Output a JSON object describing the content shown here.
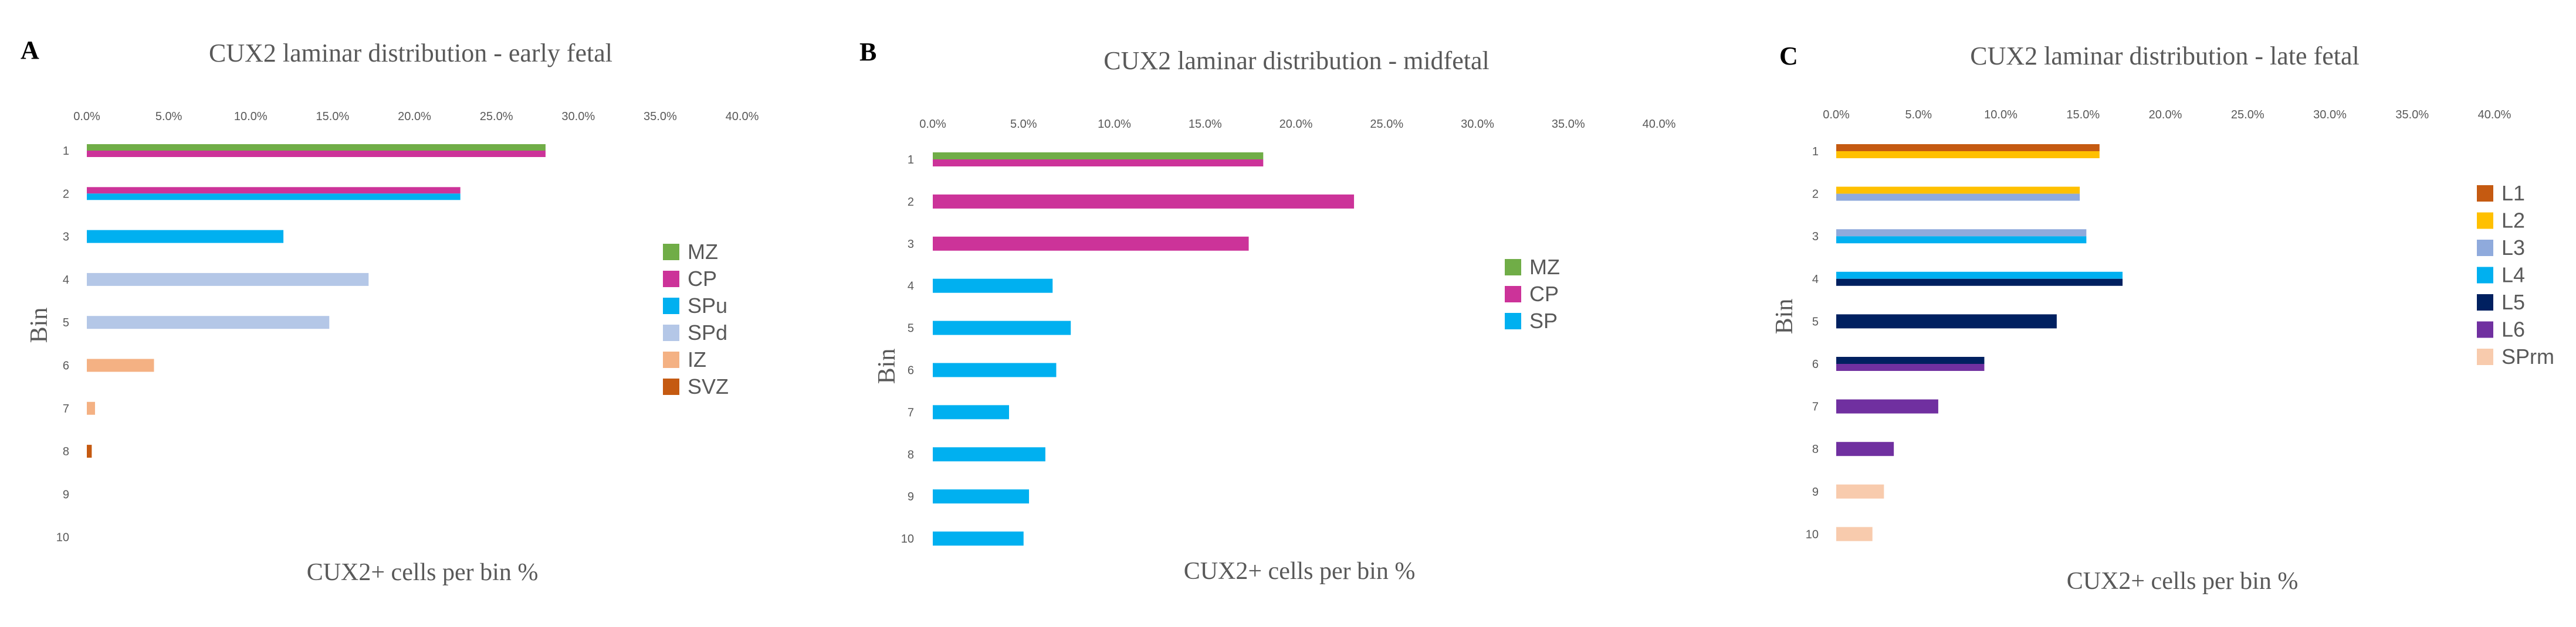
{
  "chart_data": [
    {
      "panel": "A",
      "type": "bar",
      "orientation": "horizontal",
      "title": "CUX2 laminar distribution - early fetal",
      "xlabel": "CUX2+ cells per bin %",
      "ylabel": "Bin",
      "xlim": [
        0,
        0.4
      ],
      "xticks": [
        "0.0%",
        "5.0%",
        "10.0%",
        "15.0%",
        "20.0%",
        "25.0%",
        "30.0%",
        "35.0%",
        "40.0%"
      ],
      "categories": [
        "1",
        "2",
        "3",
        "4",
        "5",
        "6",
        "7",
        "8",
        "9",
        "10"
      ],
      "series": [
        {
          "name": "MZ",
          "color": "#70AD47",
          "values": [
            0.28,
            0,
            0,
            0,
            0,
            0,
            0,
            0,
            0,
            0
          ]
        },
        {
          "name": "CP",
          "color": "#CC3399",
          "values": [
            0.28,
            0.228,
            0,
            0,
            0,
            0,
            0,
            0,
            0,
            0
          ]
        },
        {
          "name": "SPu",
          "color": "#00B0F0",
          "values": [
            0,
            0.228,
            0.12,
            0,
            0,
            0,
            0,
            0,
            0,
            0
          ]
        },
        {
          "name": "SPd",
          "color": "#B4C7E7",
          "values": [
            0,
            0,
            0,
            0.172,
            0.148,
            0,
            0,
            0,
            0,
            0
          ]
        },
        {
          "name": "IZ",
          "color": "#F4B183",
          "values": [
            0,
            0,
            0,
            0,
            0,
            0.041,
            0.005,
            0,
            0,
            0
          ]
        },
        {
          "name": "SVZ",
          "color": "#C55A11",
          "values": [
            0,
            0,
            0,
            0,
            0,
            0,
            0,
            0.003,
            0,
            0
          ]
        }
      ]
    },
    {
      "panel": "B",
      "type": "bar",
      "orientation": "horizontal",
      "title": "CUX2 laminar distribution - midfetal",
      "xlabel": "CUX2+ cells per bin %",
      "ylabel": "Bin",
      "xlim": [
        0,
        0.4
      ],
      "xticks": [
        "0.0%",
        "5.0%",
        "10.0%",
        "15.0%",
        "20.0%",
        "25.0%",
        "30.0%",
        "35.0%",
        "40.0%"
      ],
      "categories": [
        "1",
        "2",
        "3",
        "4",
        "5",
        "6",
        "7",
        "8",
        "9",
        "10"
      ],
      "series": [
        {
          "name": "MZ",
          "color": "#70AD47",
          "values": [
            0.182,
            0,
            0,
            0,
            0,
            0,
            0,
            0,
            0,
            0
          ]
        },
        {
          "name": "CP",
          "color": "#CC3399",
          "values": [
            0.182,
            0.232,
            0.174,
            0,
            0,
            0,
            0,
            0,
            0,
            0
          ]
        },
        {
          "name": "SP",
          "color": "#00B0F0",
          "values": [
            0,
            0,
            0,
            0.066,
            0.076,
            0.068,
            0.042,
            0.062,
            0.053,
            0.05
          ]
        }
      ]
    },
    {
      "panel": "C",
      "type": "bar",
      "orientation": "horizontal",
      "title": "CUX2 laminar distribution - late fetal",
      "xlabel": "CUX2+ cells per bin %",
      "ylabel": "Bin",
      "xlim": [
        0,
        0.4
      ],
      "xticks": [
        "0.0%",
        "5.0%",
        "10.0%",
        "15.0%",
        "20.0%",
        "25.0%",
        "30.0%",
        "35.0%",
        "40.0%"
      ],
      "categories": [
        "1",
        "2",
        "3",
        "4",
        "5",
        "6",
        "7",
        "8",
        "9",
        "10"
      ],
      "series": [
        {
          "name": "L1",
          "color": "#C55A11",
          "values": [
            0.16,
            0,
            0,
            0,
            0,
            0,
            0,
            0,
            0,
            0
          ]
        },
        {
          "name": "L2",
          "color": "#FFC000",
          "values": [
            0.16,
            0.148,
            0,
            0,
            0,
            0,
            0,
            0,
            0,
            0
          ]
        },
        {
          "name": "L3",
          "color": "#8FAADC",
          "values": [
            0,
            0.148,
            0.152,
            0,
            0,
            0,
            0,
            0,
            0,
            0
          ]
        },
        {
          "name": "L4",
          "color": "#00B0F0",
          "values": [
            0,
            0,
            0.152,
            0.174,
            0,
            0,
            0,
            0,
            0,
            0
          ]
        },
        {
          "name": "L5",
          "color": "#002060",
          "values": [
            0,
            0,
            0,
            0.174,
            0.134,
            0.09,
            0,
            0,
            0,
            0
          ]
        },
        {
          "name": "L6",
          "color": "#7030A0",
          "values": [
            0,
            0,
            0,
            0,
            0,
            0.09,
            0.062,
            0.035,
            0,
            0
          ]
        },
        {
          "name": "SPrm",
          "color": "#F8CBAD",
          "values": [
            0,
            0,
            0,
            0,
            0,
            0,
            0,
            0,
            0.029,
            0.022
          ]
        }
      ]
    }
  ]
}
